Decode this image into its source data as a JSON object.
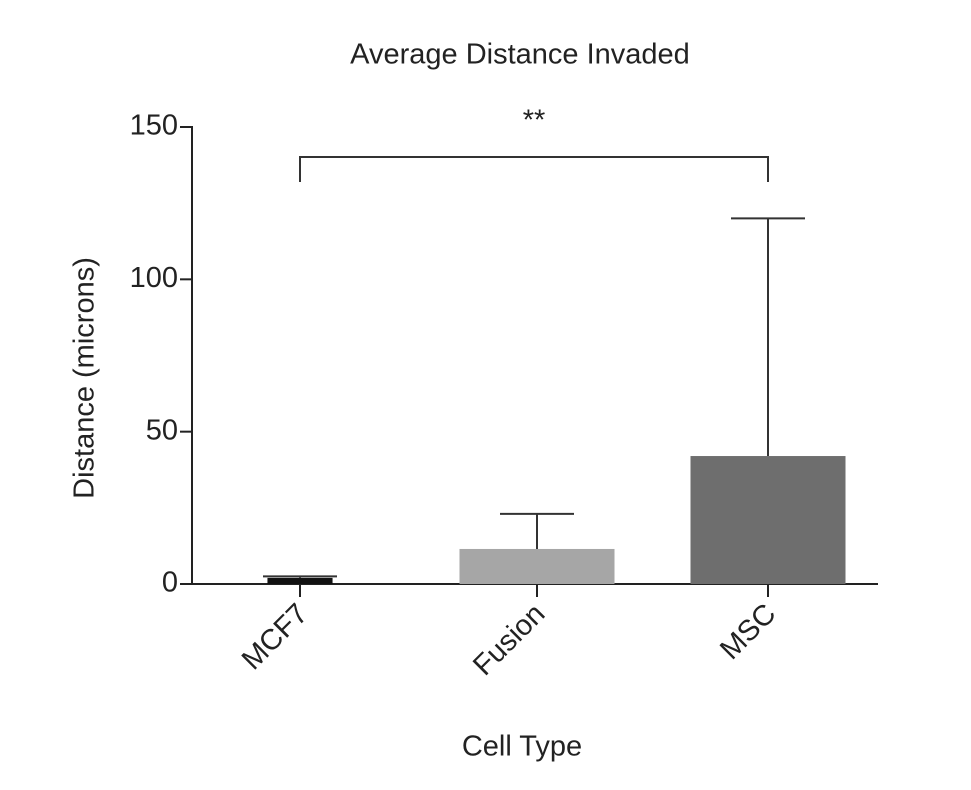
{
  "chart_data": {
    "type": "bar",
    "title": "Average Distance Invaded",
    "x_label": "Cell Type",
    "y_label": "Distance (microns)",
    "categories": [
      "MCF7",
      "Fusion",
      "MSC"
    ],
    "values": [
      2,
      11.5,
      42
    ],
    "errors": [
      0.5,
      11.5,
      78
    ],
    "colors": [
      "#111111",
      "#a6a6a6",
      "#6e6e6e"
    ],
    "ylim": [
      0,
      150
    ],
    "yticks": [
      0,
      50,
      100,
      150
    ],
    "grid": false,
    "annotation": "**"
  }
}
